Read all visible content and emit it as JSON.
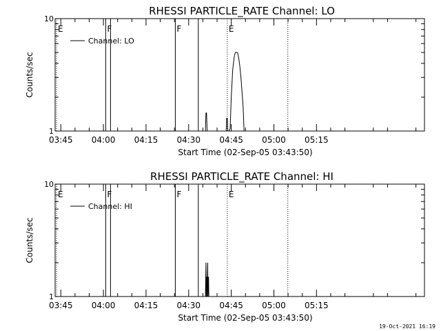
{
  "chart_data": [
    {
      "type": "line",
      "title": "RHESSI PARTICLE_RATE Channel: LO",
      "xlabel": "Start Time (02-Sep-05 03:43:50)",
      "ylabel": "Counts/sec",
      "y_scale": "log",
      "ylim": [
        1,
        10
      ],
      "y_ticks": [
        {
          "value": 1,
          "label": "1"
        },
        {
          "value": 10,
          "label": "10"
        }
      ],
      "xlim_min": [
        223,
        353
      ],
      "x_ticks": [
        {
          "value": 225,
          "label": "03:45"
        },
        {
          "value": 240,
          "label": "04:00"
        },
        {
          "value": 255,
          "label": "04:15"
        },
        {
          "value": 270,
          "label": "04:30"
        },
        {
          "value": 285,
          "label": "04:45"
        },
        {
          "value": 300,
          "label": "05:00"
        },
        {
          "value": 315,
          "label": "05:15"
        }
      ],
      "legend": {
        "entries": [
          "Channel: LO"
        ],
        "placement": "top-left"
      },
      "markers": [
        {
          "x": 223.5,
          "label": "E",
          "style": "dotted"
        },
        {
          "x": 240.8,
          "label": "F",
          "style": "solid"
        },
        {
          "x": 242.5,
          "label": "",
          "style": "solid"
        },
        {
          "x": 265.3,
          "label": "F",
          "style": "solid"
        },
        {
          "x": 273.4,
          "label": "",
          "style": "solid"
        },
        {
          "x": 283.6,
          "label": "E",
          "style": "dotted"
        },
        {
          "x": 304.9,
          "label": "",
          "style": "dotted"
        }
      ],
      "series": [
        {
          "name": "Channel: LO",
          "x": [
            275.7,
            275.9,
            276.1,
            276.3,
            276.5,
            276.7,
            283.0,
            283.2,
            283.4,
            283.6,
            283.8,
            284.2,
            284.6,
            285.0,
            285.5,
            286.0,
            286.4,
            286.8,
            287.2,
            287.6,
            288.0,
            288.4,
            288.8,
            289.2,
            289.5
          ],
          "y": [
            1.0,
            1.0,
            1.45,
            1.45,
            1.0,
            1.0,
            1.0,
            1.0,
            1.3,
            1.3,
            1.0,
            1.0,
            1.05,
            2.0,
            3.5,
            4.5,
            5.0,
            5.0,
            5.0,
            4.5,
            3.8,
            3.0,
            2.2,
            1.6,
            1.0
          ]
        }
      ]
    },
    {
      "type": "line",
      "title": "RHESSI PARTICLE_RATE Channel: HI",
      "xlabel": "Start Time (02-Sep-05 03:43:50)",
      "ylabel": "Counts/sec",
      "y_scale": "log",
      "ylim": [
        1,
        10
      ],
      "y_ticks": [
        {
          "value": 1,
          "label": "1"
        },
        {
          "value": 10,
          "label": "10"
        }
      ],
      "xlim_min": [
        223,
        353
      ],
      "x_ticks": [
        {
          "value": 225,
          "label": "03:45"
        },
        {
          "value": 240,
          "label": "04:00"
        },
        {
          "value": 255,
          "label": "04:15"
        },
        {
          "value": 270,
          "label": "04:30"
        },
        {
          "value": 285,
          "label": "04:45"
        },
        {
          "value": 300,
          "label": "05:00"
        },
        {
          "value": 315,
          "label": "05:15"
        }
      ],
      "legend": {
        "entries": [
          "Channel: HI"
        ],
        "placement": "top-left"
      },
      "markers": [
        {
          "x": 223.5,
          "label": "E",
          "style": "dotted"
        },
        {
          "x": 240.8,
          "label": "F",
          "style": "solid"
        },
        {
          "x": 242.5,
          "label": "",
          "style": "solid"
        },
        {
          "x": 265.3,
          "label": "F",
          "style": "solid"
        },
        {
          "x": 273.4,
          "label": "",
          "style": "solid"
        },
        {
          "x": 283.6,
          "label": "E",
          "style": "dotted"
        },
        {
          "x": 304.9,
          "label": "",
          "style": "dotted"
        }
      ],
      "series": [
        {
          "name": "Channel: HI",
          "x": [
            275.9,
            276.1,
            276.2,
            276.4,
            276.5,
            276.7,
            276.8,
            277.0,
            277.1,
            277.3
          ],
          "y": [
            1.0,
            2.0,
            1.0,
            1.5,
            1.0,
            2.0,
            1.0,
            1.5,
            1.0,
            1.0
          ]
        }
      ]
    }
  ],
  "footer": {
    "timestamp": "19-Oct-2021 16:19"
  }
}
